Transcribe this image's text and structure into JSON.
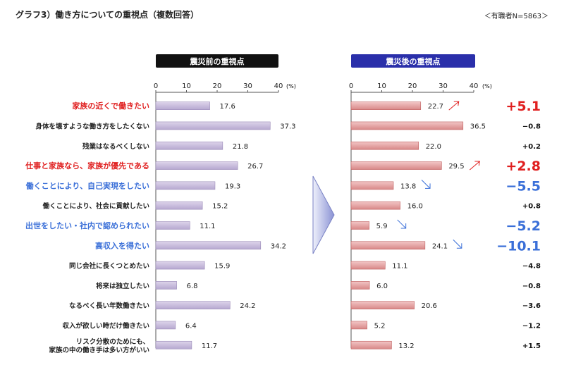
{
  "header": {
    "title": "グラフ3）働き方についての重視点（複数回答）",
    "respondents": "＜有職者N=5863＞"
  },
  "panels": {
    "before_title": "震災前の重視点",
    "after_title": "震災後の重視点",
    "axis_unit": "(%)"
  },
  "colors": {
    "before_bar": "#c4b8d8",
    "before_bar_edge": "#9a8ab8",
    "after_bar": "#e2a0a0",
    "after_bar_edge": "#c06060",
    "highlight_red": "#e02020",
    "highlight_blue": "#3a6fd8",
    "normal_text": "#222222",
    "before_header_bg": "#111111",
    "after_header_bg": "#2a2faa"
  },
  "chart_data": [
    {
      "type": "bar",
      "orientation": "horizontal",
      "name": "震災前の重視点",
      "xlim": [
        0,
        40
      ],
      "ticks": [
        "0",
        "10",
        "20",
        "30",
        "40"
      ],
      "categories": [
        "家族の近くで働きたい",
        "身体を壊すような働き方をしたくない",
        "残業はなるべくしない",
        "仕事と家族なら、家族が優先である",
        "働くことにより、自己実現をしたい",
        "働くことにより、社会に貢献したい",
        "出世をしたい・社内で認められたい",
        "高収入を得たい",
        "同じ会社に長くつとめたい",
        "将来は独立したい",
        "なるべく長い年数働きたい",
        "収入が欲しい時だけ働きたい",
        "リスク分散のためにも、\n家族の中の働き手は多い方がいい"
      ],
      "category_highlight": [
        "red",
        "none",
        "none",
        "red",
        "blue",
        "none",
        "blue",
        "blue",
        "none",
        "none",
        "none",
        "none",
        "none"
      ],
      "values": [
        17.6,
        37.3,
        21.8,
        26.7,
        19.3,
        15.2,
        11.1,
        34.2,
        15.9,
        6.8,
        24.2,
        6.4,
        11.7
      ]
    },
    {
      "type": "bar",
      "orientation": "horizontal",
      "name": "震災後の重視点",
      "xlim": [
        0,
        40
      ],
      "ticks": [
        "0",
        "10",
        "20",
        "30",
        "40"
      ],
      "values": [
        22.7,
        36.5,
        22.0,
        29.5,
        13.8,
        16.0,
        5.9,
        24.1,
        11.1,
        6.0,
        20.6,
        5.2,
        13.2
      ],
      "trend_arrows": [
        "up",
        "none",
        "none",
        "up",
        "down",
        "none",
        "down",
        "down",
        "none",
        "none",
        "none",
        "none",
        "none"
      ],
      "differences": [
        "+5.1",
        "−0.8",
        "+0.2",
        "+2.8",
        "−5.5",
        "+0.8",
        "−5.2",
        "−10.1",
        "−4.8",
        "−0.8",
        "−3.6",
        "−1.2",
        "+1.5"
      ],
      "difference_emphasis": [
        "red",
        "none",
        "none",
        "red",
        "blue",
        "none",
        "blue",
        "blue",
        "none",
        "none",
        "none",
        "none",
        "none"
      ]
    }
  ]
}
